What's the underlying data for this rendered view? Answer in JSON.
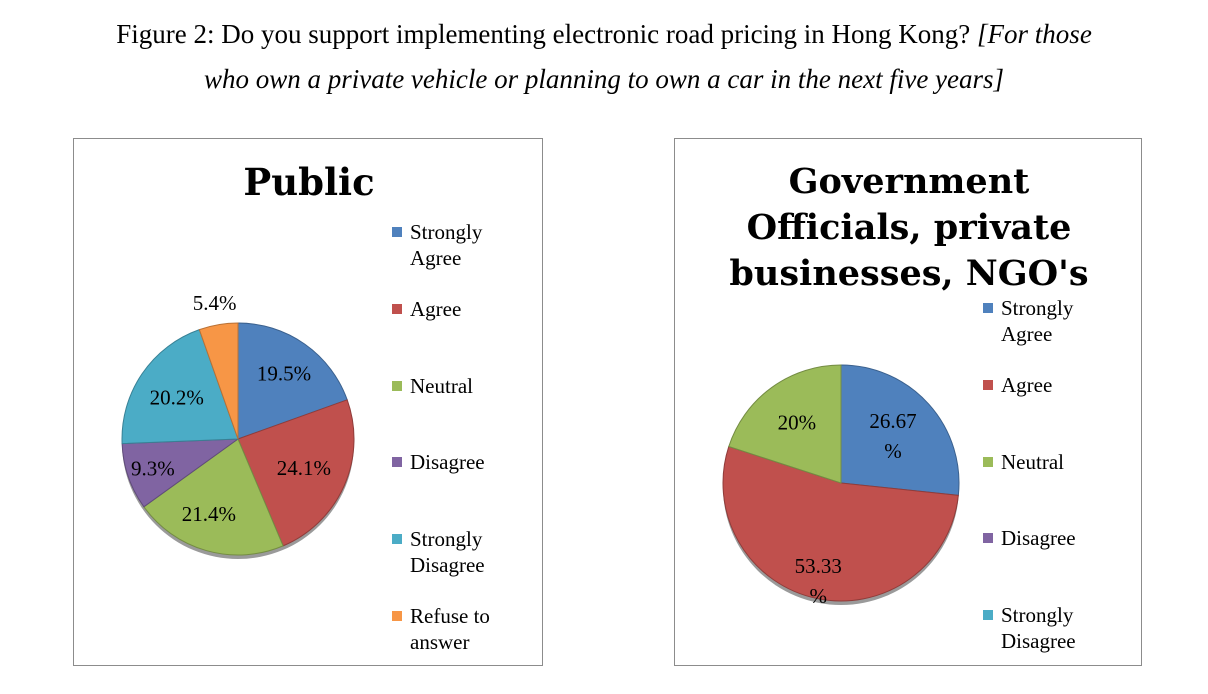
{
  "figure_title": {
    "normal": "Figure 2: Do you support implementing electronic road pricing in Hong Kong? ",
    "italic_line1": "[For those",
    "italic_line2": "who own a private vehicle or planning to own a car in the next five years]"
  },
  "chart_data": [
    {
      "type": "pie",
      "title": "Public",
      "categories": [
        "Strongly Agree",
        "Agree",
        "Neutral",
        "Disagree",
        "Strongly Disagree",
        "Refuse to answer"
      ],
      "values": [
        19.5,
        24.1,
        21.4,
        9.3,
        20.2,
        5.4
      ],
      "labels": [
        "19.5%",
        "24.1%",
        "21.4%",
        "9.3%",
        "20.2%",
        "5.4%"
      ],
      "colors": [
        "#4f81bd",
        "#c0504d",
        "#9bbb59",
        "#8064a2",
        "#4bacc6",
        "#f79646"
      ],
      "legend_position": "right"
    },
    {
      "type": "pie",
      "title": "Government Officials, private businesses, NGO's",
      "title_lines": [
        "Government",
        "Officials, private",
        "businesses, NGO's"
      ],
      "categories": [
        "Strongly Agree",
        "Agree",
        "Neutral",
        "Disagree",
        "Strongly Disagree"
      ],
      "values": [
        26.67,
        53.33,
        20,
        0,
        0
      ],
      "labels": [
        [
          "26.67",
          "%"
        ],
        [
          "53.33",
          "%"
        ],
        [
          "20%"
        ],
        [],
        []
      ],
      "colors": [
        "#4f81bd",
        "#c0504d",
        "#9bbb59",
        "#8064a2",
        "#4bacc6"
      ],
      "legend_position": "right"
    }
  ],
  "legend_lines": {
    "public": [
      [
        "Strongly",
        "Agree"
      ],
      [
        "Agree"
      ],
      [
        "Neutral"
      ],
      [
        "Disagree"
      ],
      [
        "Strongly",
        "Disagree"
      ],
      [
        "Refuse to",
        "answer"
      ]
    ],
    "gov": [
      [
        "Strongly",
        "Agree"
      ],
      [
        "Agree"
      ],
      [
        "Neutral"
      ],
      [
        "Disagree"
      ],
      [
        "Strongly",
        "Disagree"
      ]
    ]
  }
}
